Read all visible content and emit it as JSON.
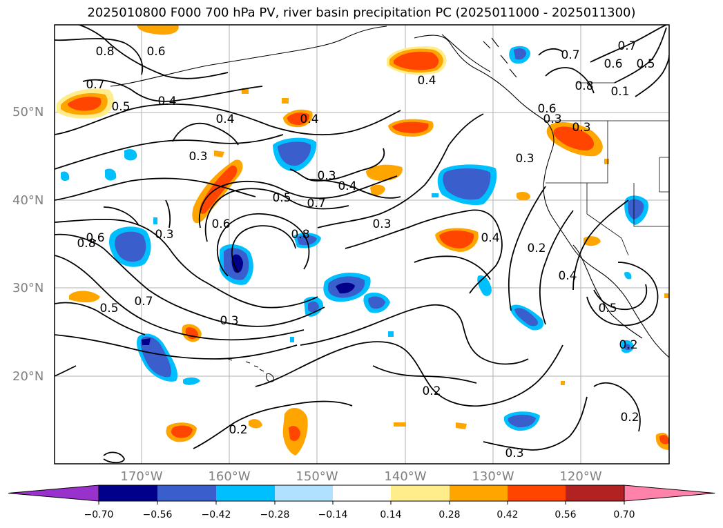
{
  "title": "2025010800 F000 700 hPa PV, river basin precipitation PC (2025011000 - 2025011300)",
  "lat_labels": [
    "50°N",
    "40°N",
    "30°N",
    "20°N"
  ],
  "lon_labels": [
    "170°W",
    "160°W",
    "150°W",
    "140°W",
    "130°W",
    "120°W"
  ],
  "contour_labels": [
    "0.8",
    "0.6",
    "0.7",
    "0.5",
    "0.4",
    "0.4",
    "0.3",
    "0.4",
    "0.3",
    "0.4",
    "0.5",
    "0.7",
    "0.6",
    "0.8",
    "0.3",
    "0.8",
    "0.6",
    "0.3",
    "0.5",
    "0.7",
    "0.3",
    "0.2",
    "0.3",
    "0.2",
    "0.2",
    "0.4",
    "0.2",
    "0.4",
    "0.5",
    "0.2",
    "0.6",
    "0.5",
    "0.7",
    "0.7",
    "0.8",
    "0.6",
    "0.3",
    "0.3",
    "0.4",
    "0.3",
    "0.1"
  ],
  "colorbar": {
    "ticks": [
      "−0.70",
      "−0.56",
      "−0.42",
      "−0.28",
      "−0.14",
      "0.14",
      "0.28",
      "0.42",
      "0.56",
      "0.70"
    ],
    "colors": [
      "#9932cc",
      "#00008b",
      "#3a5fcd",
      "#00bfff",
      "#b0e2ff",
      "#ffffff",
      "#ffec8b",
      "#ffa500",
      "#ff4500",
      "#b22222",
      "#ff82ab"
    ]
  }
}
